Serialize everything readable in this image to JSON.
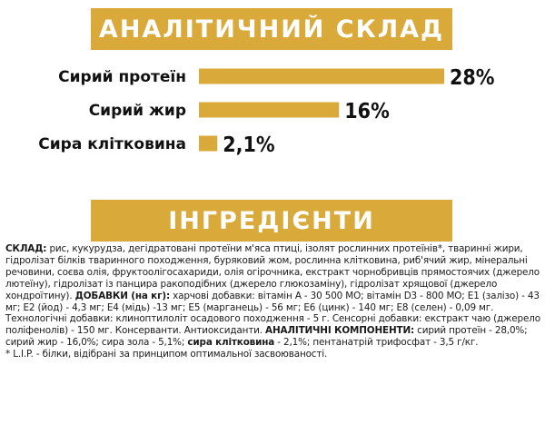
{
  "colors": {
    "accent": "#D9A93A",
    "banner_text": "#FFFFFF",
    "text": "#111111"
  },
  "analysis_banner": {
    "title": "АНАЛІТИЧНИЙ СКЛАД"
  },
  "chart_data": {
    "type": "bar",
    "orientation": "horizontal",
    "categories": [
      "Сирий протеїн",
      "Сирий жир",
      "Сира клітковина"
    ],
    "values": [
      28,
      16,
      2.1
    ],
    "value_labels": [
      "28%",
      "16%",
      "2,1%"
    ],
    "unit": "%",
    "xlim": [
      0,
      28
    ]
  },
  "ingredients_banner": {
    "title": "ІНГРЕДІЄНТИ"
  },
  "ingredients": {
    "composition_label": "СКЛАД:",
    "composition_text": " рис, кукурудза, дегідратовані протеїни м'яса птиці, ізолят рослинних протеїнів*, тваринні жири, гідролізат білків тваринного походження, буряковий жом, рослинна клітковина, риб'ячий жир, мінеральні речовини, соєва олія, фруктоолігосахариди, олія огірочника, екстракт чорнобривців прямостоячих (джерело лютеїну), гідролізат із панцира ракоподібних (джерело глюкозаміну), гідролізат хрящової (джерело хондроїтину). ",
    "additives_label": "ДОБАВКИ (на кг):",
    "additives_text": " харчові добавки: вітамін А - 30 500 МО; вітамін D3 - 800 МО; Е1 (залізо) - 43 мг; Е2 (йод) - 4,3 мг; Е4 (мідь) -13 мг; Е5 (марганець) - 56 мг; Е6 (цинк) - 140 мг; Е8 (селен) - 0,09 мг. Технологічні добавки: клиноптилоліт осадового походження - 5 г. Сенсорні добавки: екстракт чаю (джерело поліфенолів) - 150 мг. Консерванти. Антиоксиданти. ",
    "analytical_label": "АНАЛІТИЧНІ КОМПОНЕНТИ:",
    "analytical_text": " сирий протеїн - 28,0%; сирий жир - 16,0%; сира зола - 5,1%; ",
    "fiber_label": "сира клітковина",
    "fiber_text": " - 2,1%; пентанатрій трифосфат - 3,5 г/кг.",
    "footnote": "* L.I.P. - білки, відібрані за принципом оптимальної засвоюваності."
  }
}
